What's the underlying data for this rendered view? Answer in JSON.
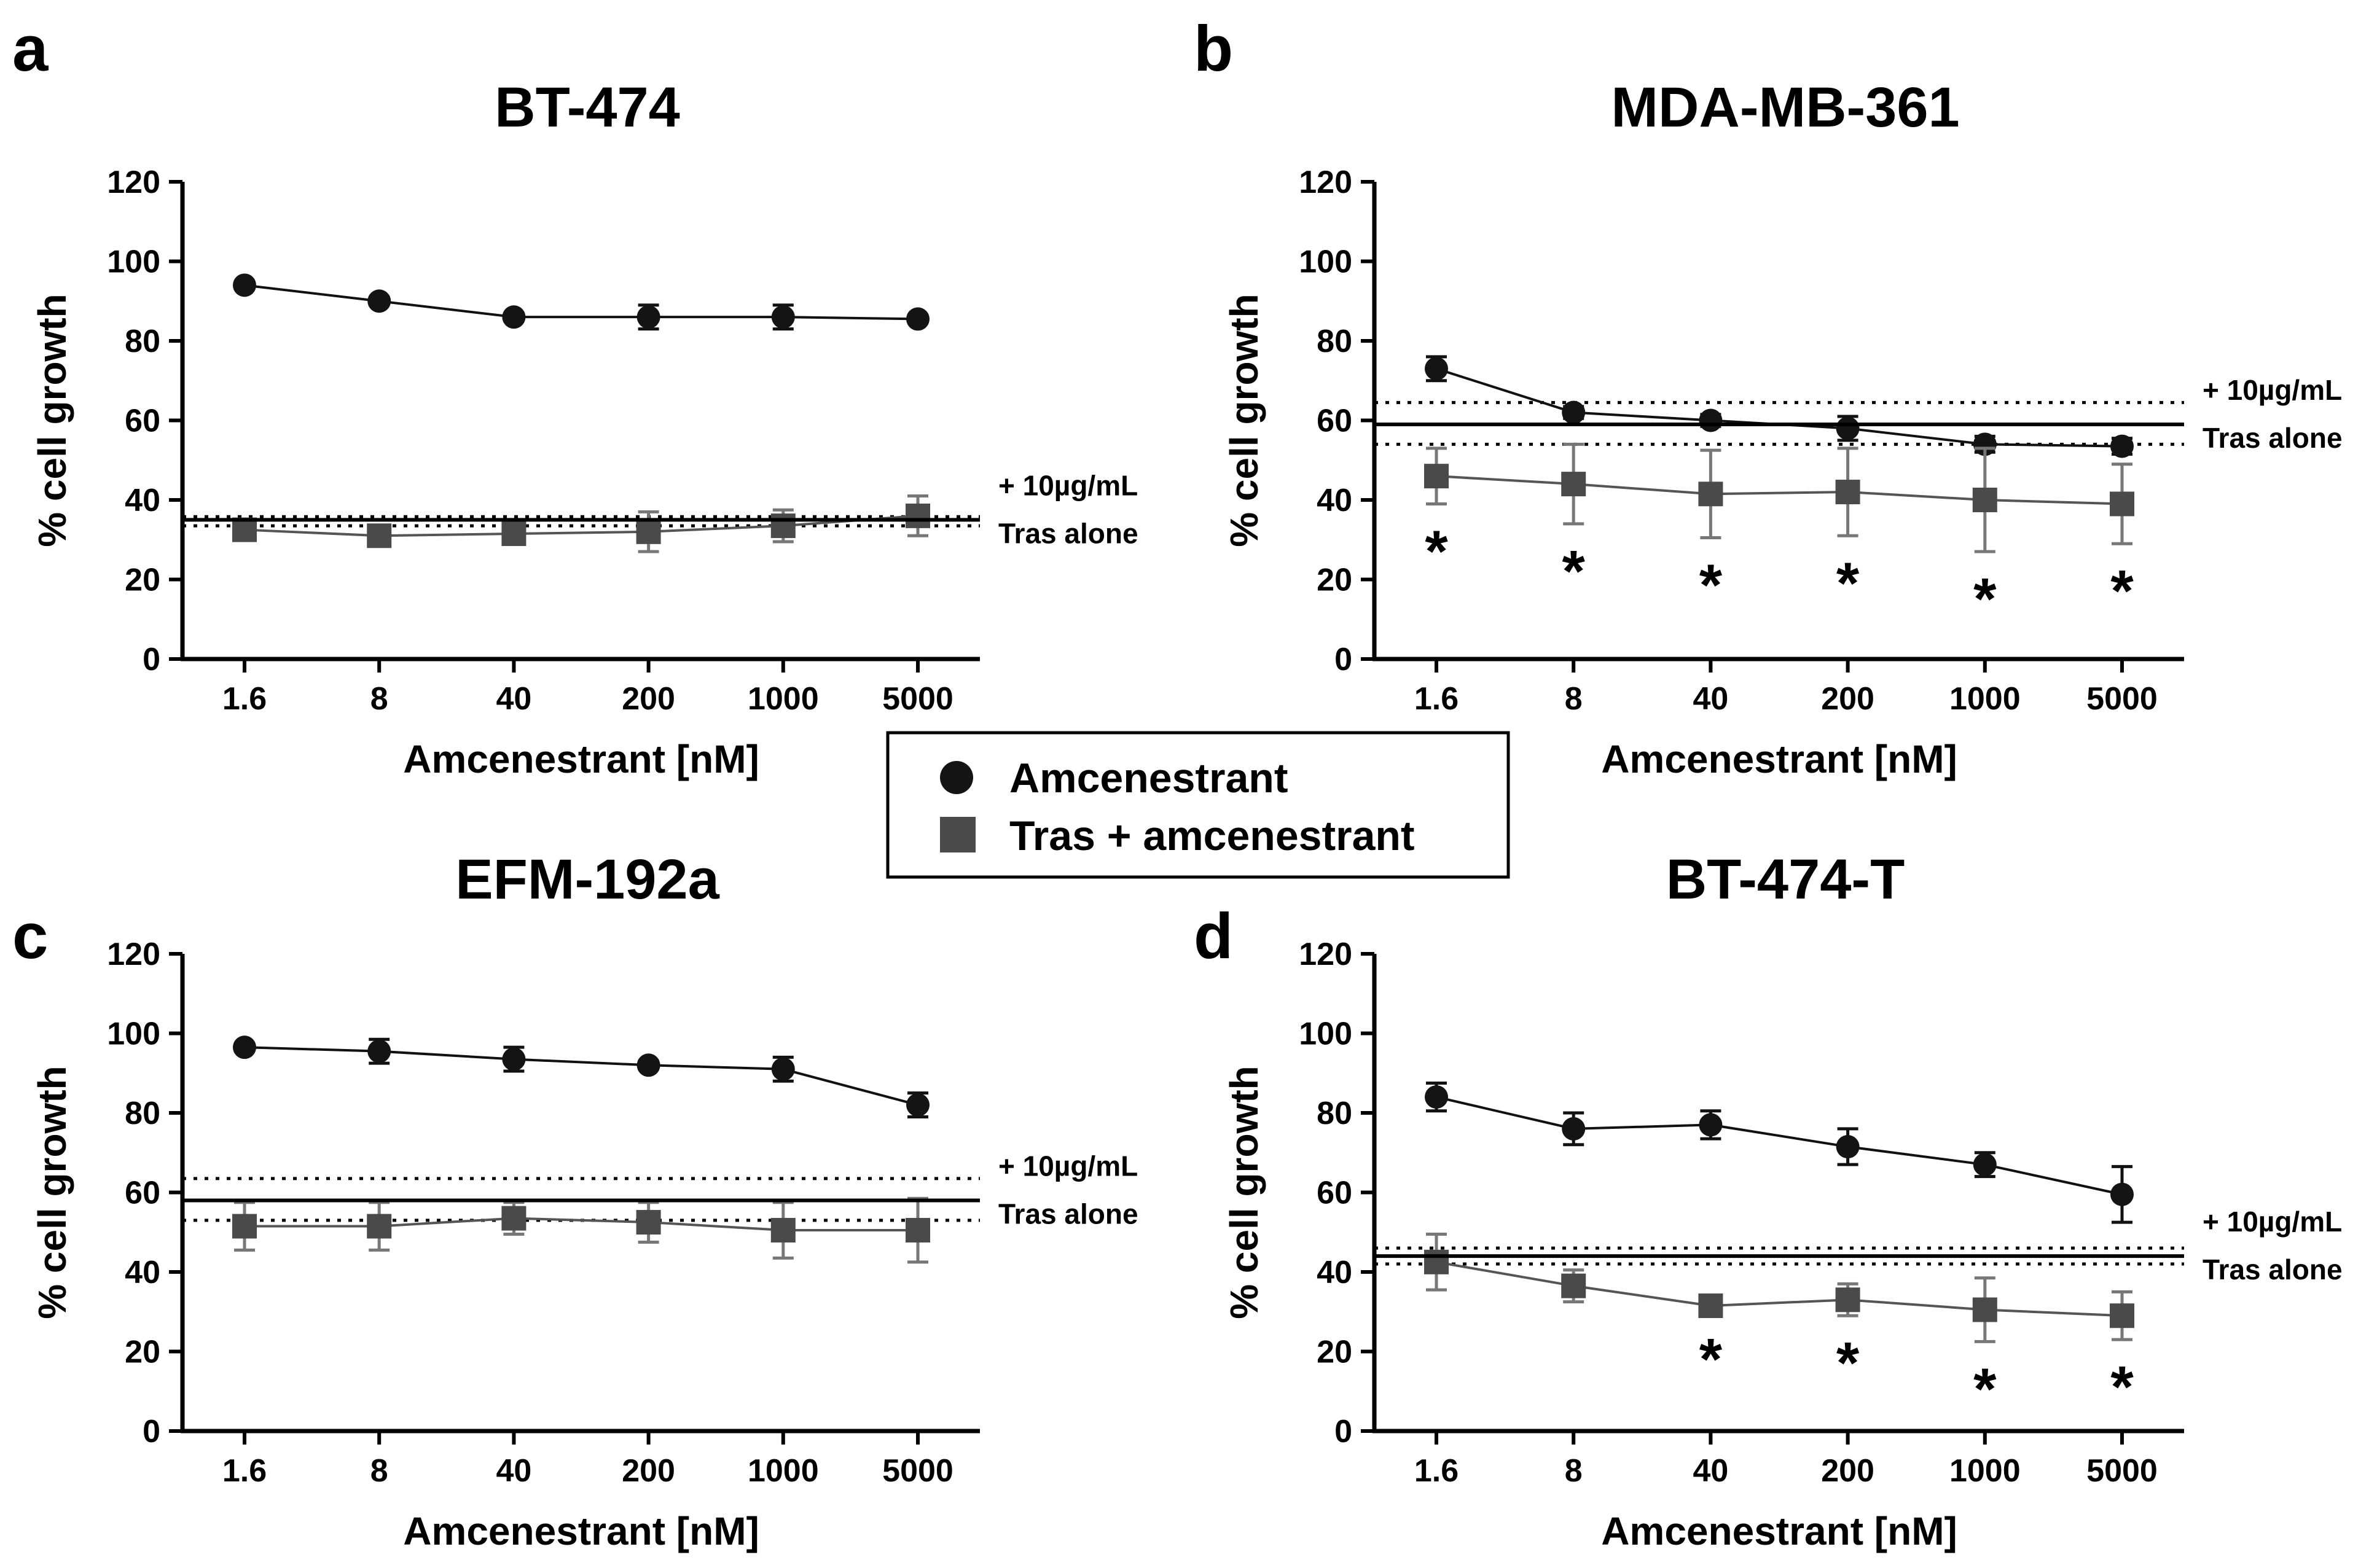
{
  "colors": {
    "amcenestrant": "#141414",
    "tras": "#4a4a4a",
    "errorbar_tras": "#777777",
    "axis": "#000000"
  },
  "legend": {
    "items": [
      {
        "label": "Amcenestrant",
        "marker": "circle"
      },
      {
        "label": "Tras + amcenestrant",
        "marker": "square"
      }
    ]
  },
  "chart_data": [
    {
      "panel": "a",
      "type": "line",
      "title": "BT-474",
      "xlabel": "Amcenestrant [nM]",
      "ylabel": "% cell growth",
      "categories": [
        "1.6",
        "8",
        "40",
        "200",
        "1000",
        "5000"
      ],
      "ylim": [
        0,
        120
      ],
      "yticks": [
        "0",
        "20",
        "40",
        "60",
        "80",
        "100",
        "120"
      ],
      "series": [
        {
          "name": "Amcenestrant",
          "values": [
            94,
            90,
            86,
            86,
            86,
            85.5
          ],
          "errors": [
            1,
            1,
            1,
            3,
            3,
            1
          ]
        },
        {
          "name": "Tras + amcenestrant",
          "values": [
            32.5,
            31,
            31.5,
            32,
            33.5,
            36
          ],
          "errors": [
            1,
            1,
            2,
            5,
            4,
            5
          ]
        }
      ],
      "reference": {
        "label_line1": "+ 10µg/mL",
        "label_line2": "Tras alone",
        "mean": 35,
        "upper": 35.8,
        "lower": 33.5
      },
      "significance": []
    },
    {
      "panel": "b",
      "type": "line",
      "title": "MDA-MB-361",
      "xlabel": "Amcenestrant [nM]",
      "ylabel": "% cell growth",
      "categories": [
        "1.6",
        "8",
        "40",
        "200",
        "1000",
        "5000"
      ],
      "ylim": [
        0,
        120
      ],
      "yticks": [
        "0",
        "20",
        "40",
        "60",
        "80",
        "100",
        "120"
      ],
      "series": [
        {
          "name": "Amcenestrant",
          "values": [
            73,
            62,
            60,
            58,
            54,
            53.5
          ],
          "errors": [
            3,
            1.5,
            1.5,
            3,
            2,
            2
          ]
        },
        {
          "name": "Tras + amcenestrant",
          "values": [
            46,
            44,
            41.5,
            42,
            40,
            39
          ],
          "errors": [
            7,
            10,
            11,
            11,
            13,
            10
          ]
        }
      ],
      "reference": {
        "label_line1": "+ 10µg/mL",
        "label_line2": "Tras alone",
        "mean": 59,
        "upper": 64.5,
        "lower": 54
      },
      "significance": [
        {
          "category": "1.6",
          "label": "*"
        },
        {
          "category": "8",
          "label": "*"
        },
        {
          "category": "40",
          "label": "*"
        },
        {
          "category": "200",
          "label": "*"
        },
        {
          "category": "1000",
          "label": "*"
        },
        {
          "category": "5000",
          "label": "*"
        }
      ]
    },
    {
      "panel": "c",
      "type": "line",
      "title": "EFM-192a",
      "xlabel": "Amcenestrant [nM]",
      "ylabel": "% cell growth",
      "categories": [
        "1.6",
        "8",
        "40",
        "200",
        "1000",
        "5000"
      ],
      "ylim": [
        0,
        120
      ],
      "yticks": [
        "0",
        "20",
        "40",
        "60",
        "80",
        "100",
        "120"
      ],
      "series": [
        {
          "name": "Amcenestrant",
          "values": [
            96.5,
            95.5,
            93.5,
            92,
            91,
            82
          ],
          "errors": [
            1,
            3,
            3,
            1,
            3,
            3
          ]
        },
        {
          "name": "Tras + amcenestrant",
          "values": [
            51.5,
            51.5,
            53.5,
            52.5,
            50.5,
            50.5
          ],
          "errors": [
            6,
            6,
            4,
            5,
            7,
            8
          ]
        }
      ],
      "reference": {
        "label_line1": "+ 10µg/mL",
        "label_line2": "Tras alone",
        "mean": 58,
        "upper": 63.5,
        "lower": 53
      },
      "significance": []
    },
    {
      "panel": "d",
      "type": "line",
      "title": "BT-474-T",
      "xlabel": "Amcenestrant [nM]",
      "ylabel": "% cell growth",
      "categories": [
        "1.6",
        "8",
        "40",
        "200",
        "1000",
        "5000"
      ],
      "ylim": [
        0,
        120
      ],
      "yticks": [
        "0",
        "20",
        "40",
        "60",
        "80",
        "100",
        "120"
      ],
      "series": [
        {
          "name": "Amcenestrant",
          "values": [
            84,
            76,
            77,
            71.5,
            67,
            59.5
          ],
          "errors": [
            3.5,
            4,
            3.5,
            4.5,
            3,
            7
          ]
        },
        {
          "name": "Tras + amcenestrant",
          "values": [
            42.5,
            36.5,
            31.5,
            33,
            30.5,
            29
          ],
          "errors": [
            7,
            4,
            1.5,
            4,
            8,
            6
          ]
        }
      ],
      "reference": {
        "label_line1": "+ 10µg/mL",
        "label_line2": "Tras alone",
        "mean": 44,
        "upper": 46,
        "lower": 42
      },
      "significance": [
        {
          "category": "40",
          "label": "*"
        },
        {
          "category": "200",
          "label": "*"
        },
        {
          "category": "1000",
          "label": "*"
        },
        {
          "category": "5000",
          "label": "*"
        }
      ]
    }
  ]
}
